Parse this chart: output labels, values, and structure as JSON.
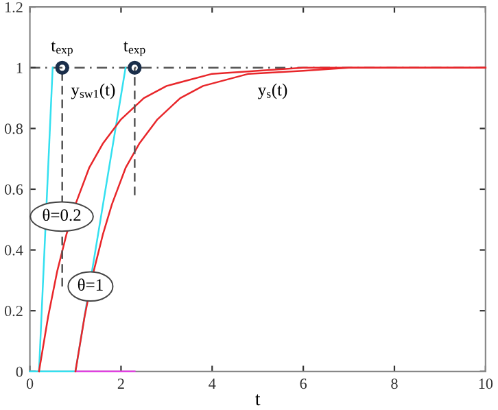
{
  "chart_data": {
    "type": "line",
    "xlabel": "t",
    "xlim": [
      0,
      10
    ],
    "ylim": [
      0,
      1.2
    ],
    "xticks": [
      0,
      2,
      4,
      6,
      8,
      10
    ],
    "yticks": [
      0,
      0.2,
      0.4,
      0.6,
      0.8,
      1,
      1.2
    ],
    "grid": false,
    "series": [
      {
        "color": "#33e0f0",
        "x": [
          0.2,
          0.5
        ],
        "values": [
          0,
          1
        ]
      },
      {
        "color": "#33e0f0",
        "x": [
          0,
          1,
          2.1
        ],
        "values": [
          0,
          0,
          1
        ]
      },
      {
        "color": "#e040e0",
        "x": [
          1,
          2.3
        ],
        "values": [
          0,
          0
        ]
      },
      {
        "color": "#e8262a",
        "x": [
          0.2,
          0.4,
          0.6,
          0.8,
          1.0,
          1.3,
          1.6,
          2,
          2.5,
          3,
          4,
          5,
          6,
          10
        ],
        "values": [
          0,
          0.18,
          0.33,
          0.45,
          0.55,
          0.67,
          0.75,
          0.83,
          0.9,
          0.94,
          0.98,
          0.99,
          1,
          1
        ]
      },
      {
        "color": "#e8262a",
        "x": [
          1,
          1.2,
          1.4,
          1.6,
          1.8,
          2.1,
          2.4,
          2.8,
          3.3,
          3.8,
          4.8,
          6,
          7,
          10
        ],
        "values": [
          0,
          0.18,
          0.33,
          0.45,
          0.55,
          0.67,
          0.75,
          0.83,
          0.9,
          0.94,
          0.98,
          0.99,
          1,
          1
        ]
      },
      {
        "color": "#555555",
        "line_style": "dashed",
        "x": [
          0.71,
          0.71
        ],
        "values": [
          0.28,
          1
        ]
      },
      {
        "color": "#555555",
        "line_style": "dashed",
        "x": [
          2.3,
          2.3
        ],
        "values": [
          0.58,
          1
        ]
      },
      {
        "type": "scatter",
        "marker": "circle",
        "color": "#1a2e4a",
        "x": [
          0.71,
          2.3
        ],
        "values": [
          1,
          1
        ]
      }
    ],
    "ref_lines": [
      {
        "axis": "y",
        "value": 1,
        "color": "#555555",
        "line_style": "dashdot"
      }
    ],
    "annotations": [
      {
        "text": "t$_{exp}$",
        "x": 0.71,
        "y": 1
      },
      {
        "text": "t$_{exp}$",
        "x": 2.3,
        "y": 1
      },
      "y$_{sw1}$(t)",
      "y$_{s}$(t)",
      {
        "text": "θ=0.2",
        "x": 0.7,
        "y": 0.51
      },
      {
        "text": "θ=1",
        "x": 1.33,
        "y": 0.28
      }
    ]
  }
}
